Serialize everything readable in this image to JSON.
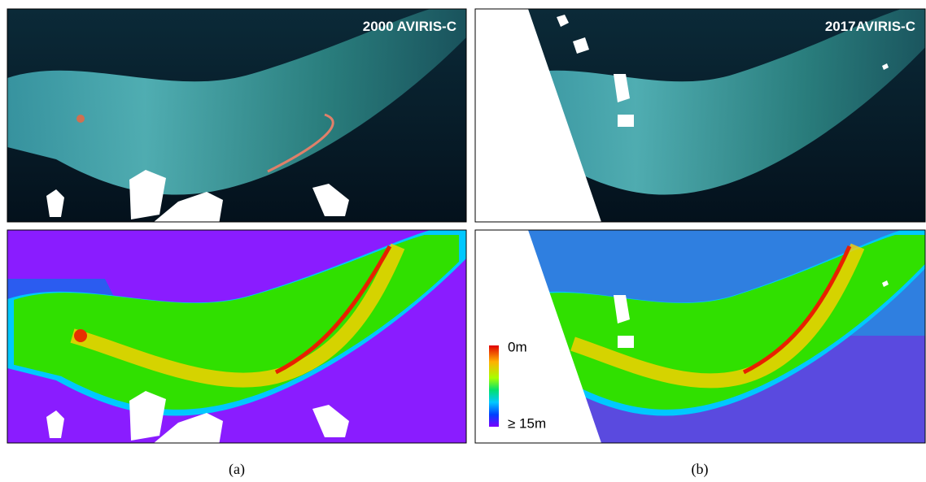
{
  "panels": [
    {
      "label": "2000 AVIRIS-C"
    },
    {
      "label": "2017AVIRIS-C"
    }
  ],
  "colorbar": {
    "top_label": "0m",
    "bottom_label": "≥ 15m"
  },
  "captions": [
    "(a)",
    "(b)"
  ]
}
